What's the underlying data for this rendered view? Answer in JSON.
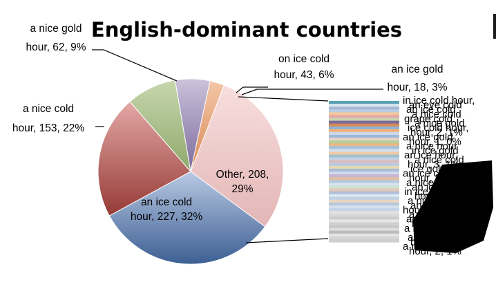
{
  "chart_data": {
    "type": "pie",
    "title": "English-dominant countries",
    "slices": [
      {
        "name": "Other",
        "value": 208,
        "percent": "29%",
        "label": "Other, 208, 29%",
        "color": "#f8dede",
        "color_dark": "#e3b6b6"
      },
      {
        "name": "an ice cold hour",
        "value": 227,
        "percent": "32%",
        "label": "an ice cold hour, 227, 32%",
        "color": "#b9c9e3",
        "color_dark": "#3c5f93"
      },
      {
        "name": "a nice cold hour",
        "value": 153,
        "percent": "22%",
        "label": "a nice cold hour, 153, 22%",
        "color": "#e3a8a6",
        "color_dark": "#963a36"
      },
      {
        "name": "a nice gold hour",
        "value": 62,
        "percent": "9%",
        "label": "a nice gold hour, 62, 9%",
        "color": "#c7d7ae",
        "color_dark": "#8ea86b"
      },
      {
        "name": "on ice cold hour",
        "value": 43,
        "percent": "6%",
        "label": "on ice cold hour, 43, 6%",
        "color": "#cbc2da",
        "color_dark": "#7d6b9e"
      },
      {
        "name": "an ice gold hour",
        "value": 18,
        "percent": "3%",
        "label": "an ice gold hour, 18, 3%",
        "color": "#f3c7a8",
        "color_dark": "#d98a55"
      }
    ],
    "slice_labels": {
      "other": [
        "Other, 208,",
        "29%"
      ],
      "ice_cold": [
        "an ice cold",
        "hour, 227, 32%"
      ],
      "nice_cold": [
        "a nice cold",
        "hour, 153, 22%"
      ],
      "nice_gold": [
        "a nice gold",
        "hour, 62, 9%"
      ],
      "on_ice": [
        "on ice cold",
        "hour, 43, 6%"
      ],
      "ice_gold": [
        "an ice gold",
        "hour, 18, 3%"
      ]
    },
    "other_breakdown": {
      "type": "stacked-bar",
      "bar_colors": [
        "#5aa0b4",
        "#d9e6ee",
        "#a8b7d6",
        "#b7cde0",
        "#f2c8a0",
        "#e3a8a6",
        "#c7d7ae",
        "#7d6b9e",
        "#d98a55",
        "#8fb2d4",
        "#f0b27a",
        "#cdd9ea",
        "#9bbad6",
        "#e8d0c8",
        "#b6cf9a",
        "#e8b88a",
        "#a3c0dc",
        "#d4e0ef",
        "#f0c9a6",
        "#9fc3cf",
        "#c4d0e6",
        "#dcbcbc",
        "#b9cbe0",
        "#e6d8b0",
        "#a6bcd8",
        "#d0dceb",
        "#c9b4d6",
        "#e0c0a0",
        "#b4c8de",
        "#d8e4f0",
        "#cfe0d0",
        "#e4c8b8",
        "#aebfd8",
        "#dde7f2",
        "#c0d0e4",
        "#e8d6c0",
        "#b8c6dc",
        "#d4dfec",
        "#c6d4e8",
        "#e2e2e2",
        "#d8d8d8",
        "#cccccc",
        "#e6e6e6",
        "#d0d0d0",
        "#c8c8c8",
        "#dddddd",
        "#bcbcbc",
        "#e4e4e4",
        "#d4d4d4",
        "#cfcfcf"
      ],
      "label_fragments": [
        "in ice cold hour,",
        "an eye cold",
        "an ice cold",
        "a nice cold",
        "grape cold",
        "a nice gold",
        "ice cold hour,",
        "hour, 2, 1%",
        "an ice gold",
        "hour, 1, 0%",
        "a nice hour",
        "in ice gold",
        "an ice hour,",
        "a nice cold",
        "hour, 3, 1%",
        "ice gold hour",
        "an ice cold",
        "hour, 2, 0%",
        "a nice gold",
        "an ice hour",
        "in ice cold",
        "hour, 1, 0%",
        "a nice cold",
        "an eye gold",
        "hour, 4, 1%",
        "a grape cold",
        "an ice cold",
        "hour, 2, 0%",
        "a nice gold",
        "in ice hour",
        "an ice cold",
        "hour, 1, 0%",
        "a nice cold",
        "hour, 2, 1%"
      ]
    }
  }
}
